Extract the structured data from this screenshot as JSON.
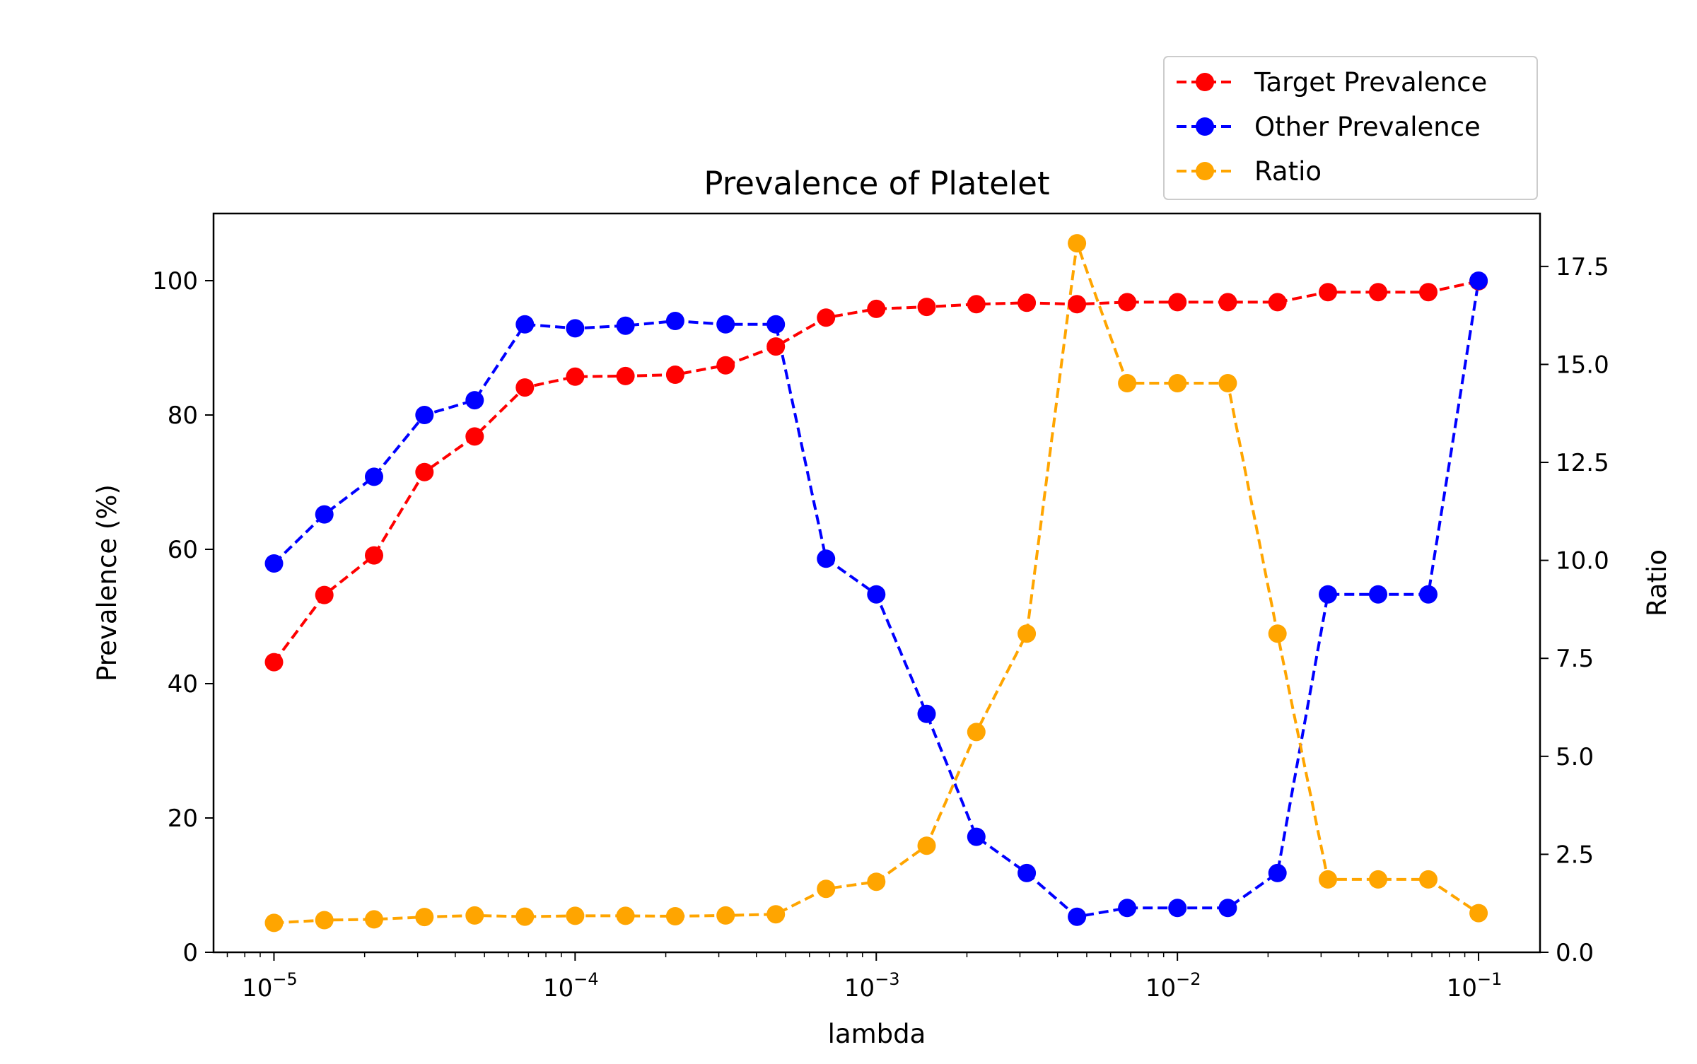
{
  "chart_data": {
    "type": "line",
    "title": "Prevalence of Platelet",
    "xlabel": "lambda",
    "ylabel": "Prevalence (%)",
    "y2label": "Ratio",
    "xscale": "log",
    "xlim": [
      6.3e-06,
      0.16
    ],
    "ylim": [
      0,
      110
    ],
    "y2lim": [
      0,
      18.85
    ],
    "x_ticks": [
      {
        "value": 1e-05,
        "base": "10",
        "exp": "−5"
      },
      {
        "value": 0.0001,
        "base": "10",
        "exp": "−4"
      },
      {
        "value": 0.001,
        "base": "10",
        "exp": "−3"
      },
      {
        "value": 0.01,
        "base": "10",
        "exp": "−2"
      },
      {
        "value": 0.1,
        "base": "10",
        "exp": "−1"
      }
    ],
    "y_ticks": [
      {
        "value": 0,
        "label": "0"
      },
      {
        "value": 20,
        "label": "20"
      },
      {
        "value": 40,
        "label": "40"
      },
      {
        "value": 60,
        "label": "60"
      },
      {
        "value": 80,
        "label": "80"
      },
      {
        "value": 100,
        "label": "100"
      }
    ],
    "y2_ticks": [
      {
        "value": 0,
        "label": "0.0"
      },
      {
        "value": 2.5,
        "label": "2.5"
      },
      {
        "value": 5,
        "label": "5.0"
      },
      {
        "value": 7.5,
        "label": "7.5"
      },
      {
        "value": 10,
        "label": "10.0"
      },
      {
        "value": 12.5,
        "label": "12.5"
      },
      {
        "value": 15,
        "label": "15.0"
      },
      {
        "value": 17.5,
        "label": "17.5"
      }
    ],
    "x": [
      1e-05,
      1.47e-05,
      2.15e-05,
      3.16e-05,
      4.64e-05,
      6.81e-05,
      0.0001,
      0.000147,
      0.000215,
      0.000316,
      0.000464,
      0.000681,
      0.001,
      0.00147,
      0.00215,
      0.00316,
      0.00464,
      0.00681,
      0.01,
      0.0147,
      0.0215,
      0.0316,
      0.0464,
      0.0681,
      0.1
    ],
    "series": [
      {
        "name": "Target Prevalence",
        "color": "#ff0000",
        "axis": "left",
        "values": [
          43.2,
          53.2,
          59.1,
          71.5,
          76.8,
          84.1,
          85.7,
          85.8,
          86.0,
          87.4,
          90.2,
          94.5,
          95.8,
          96.1,
          96.5,
          96.7,
          96.5,
          96.8,
          96.8,
          96.8,
          96.8,
          98.3,
          98.3,
          98.3,
          99.9
        ]
      },
      {
        "name": "Other Prevalence",
        "color": "#0000ff",
        "axis": "left",
        "values": [
          57.9,
          65.2,
          70.8,
          80.0,
          82.2,
          93.5,
          92.9,
          93.3,
          94.0,
          93.5,
          93.5,
          58.6,
          53.3,
          35.5,
          17.2,
          11.8,
          5.3,
          6.6,
          6.6,
          6.6,
          11.8,
          53.3,
          53.3,
          53.3,
          100.0
        ]
      },
      {
        "name": "Ratio",
        "color": "#ffa500",
        "axis": "right",
        "values": [
          0.75,
          0.82,
          0.84,
          0.9,
          0.94,
          0.91,
          0.93,
          0.93,
          0.92,
          0.94,
          0.97,
          1.62,
          1.8,
          2.72,
          5.62,
          8.13,
          18.09,
          14.52,
          14.52,
          14.52,
          8.13,
          1.86,
          1.86,
          1.86,
          1.0
        ]
      }
    ],
    "legend_position": "upper-right, above plot",
    "grid": false
  }
}
